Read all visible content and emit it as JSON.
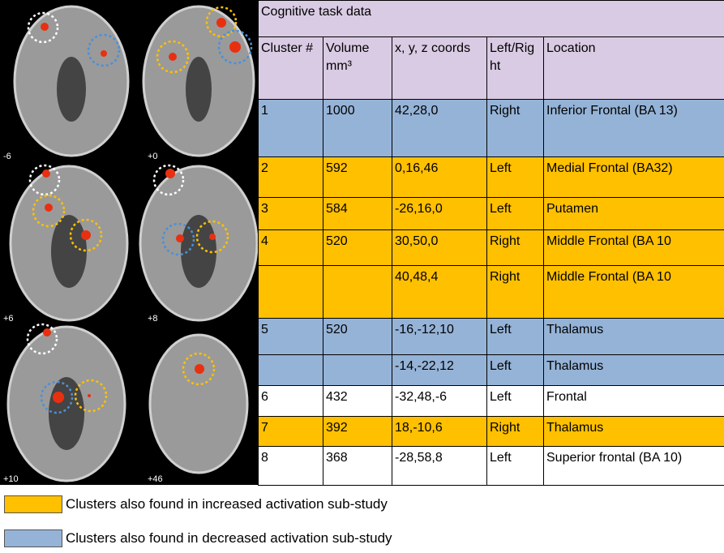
{
  "figure": {
    "slice_labels": [
      "-6",
      "+0",
      "+6",
      "+8",
      "+10",
      "+46"
    ]
  },
  "table": {
    "title": "Cognitive task data",
    "header_color": "#d9cbe3",
    "columns": [
      "Cluster #",
      "Volume mm³",
      "x, y, z coords",
      "Left/Right",
      "Location"
    ],
    "rows": [
      {
        "color": "#95b3d7",
        "cells": [
          "1",
          "1000",
          "42,28,0",
          "Right",
          "Inferior Frontal (BA 13)"
        ]
      },
      {
        "color": "#ffc000",
        "cells": [
          "2",
          "592",
          "0,16,46",
          "Left",
          "Medial Frontal (BA32)"
        ]
      },
      {
        "color": "#ffc000",
        "cells": [
          "3",
          "584",
          "-26,16,0",
          "Left",
          "Putamen"
        ]
      },
      {
        "color": "#ffc000",
        "cells": [
          "4",
          "520",
          "30,50,0",
          "Right",
          "Middle Frontal (BA 10"
        ]
      },
      {
        "color": "#ffc000",
        "cells": [
          null,
          null,
          "40,48,4",
          "Right",
          "Middle Frontal (BA 10"
        ]
      },
      {
        "color": "#95b3d7",
        "cells": [
          "5",
          "520",
          "-16,-12,10",
          "Left",
          "Thalamus"
        ]
      },
      {
        "color": "#95b3d7",
        "cells": [
          null,
          null,
          "-14,-22,12",
          "Left",
          "Thalamus"
        ]
      },
      {
        "color": "#ffffff",
        "cells": [
          "6",
          "432",
          "-32,48,-6",
          "Left",
          "Frontal"
        ]
      },
      {
        "color": "#ffc000",
        "cells": [
          "7",
          "392",
          "18,-10,6",
          "Right",
          "Thalamus"
        ]
      },
      {
        "color": "#ffffff",
        "cells": [
          "8",
          "368",
          "-28,58,8",
          "Left",
          "Superior frontal (BA 10)"
        ]
      }
    ]
  },
  "legend": [
    {
      "color": "#ffc000",
      "label": "Clusters also found in increased activation sub-study"
    },
    {
      "color": "#95b3d7",
      "label": "Clusters also found in decreased activation sub-study"
    }
  ]
}
